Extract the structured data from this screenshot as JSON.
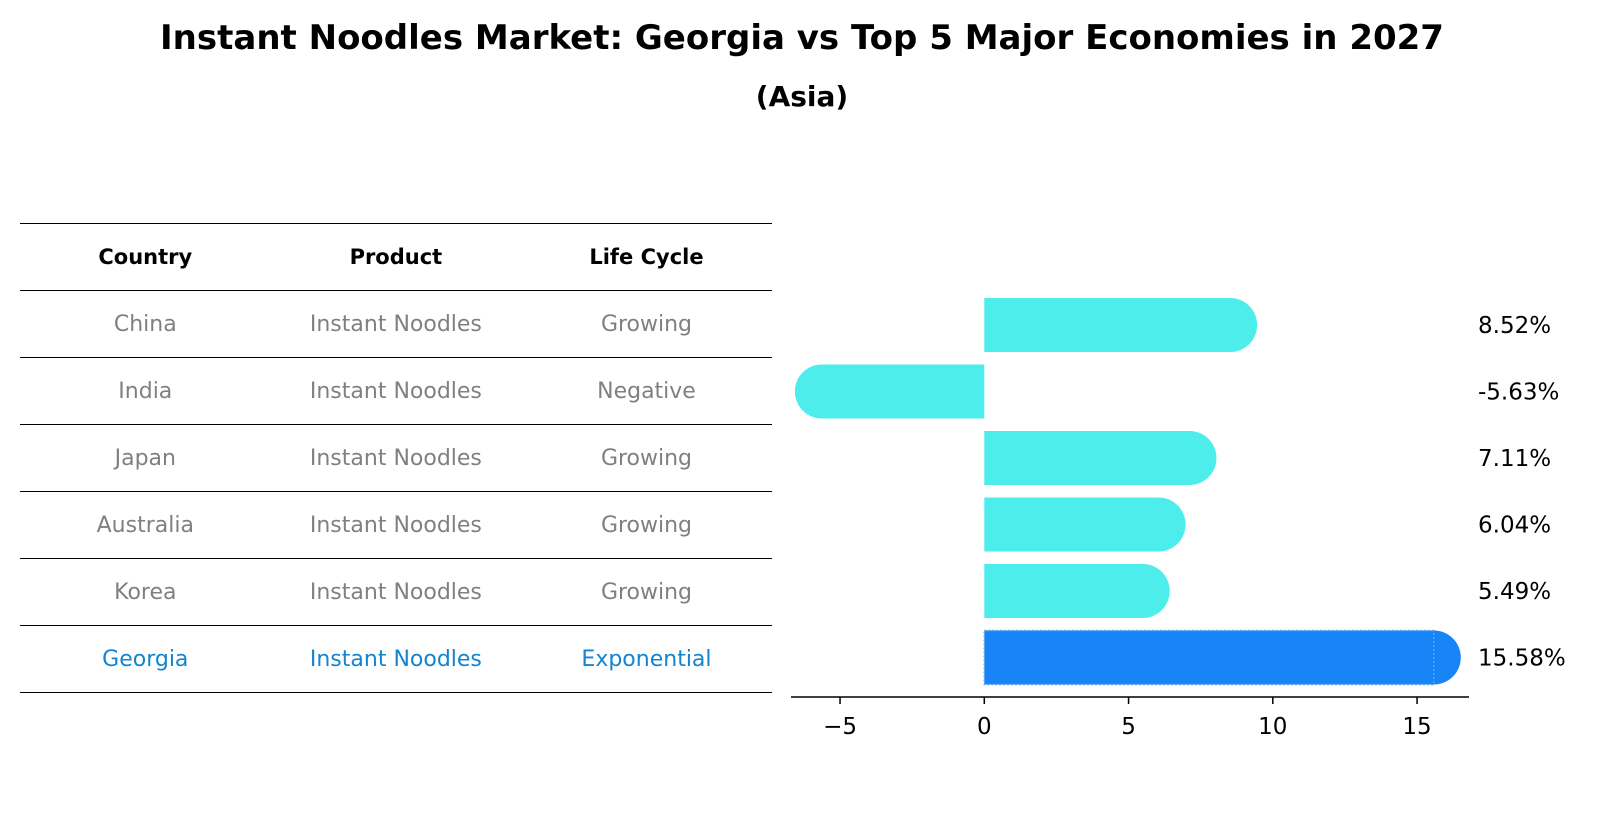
{
  "title": "Instant Noodles Market: Georgia vs Top 5 Major Economies in 2027",
  "subtitle": "(Asia)",
  "table": {
    "headers": [
      "Country",
      "Product",
      "Life Cycle"
    ],
    "rows": [
      {
        "country": "China",
        "product": "Instant Noodles",
        "life_cycle": "Growing"
      },
      {
        "country": "India",
        "product": "Instant Noodles",
        "life_cycle": "Negative"
      },
      {
        "country": "Japan",
        "product": "Instant Noodles",
        "life_cycle": "Growing"
      },
      {
        "country": "Australia",
        "product": "Instant Noodles",
        "life_cycle": "Growing"
      },
      {
        "country": "Korea",
        "product": "Instant Noodles",
        "life_cycle": "Growing"
      },
      {
        "country": "Georgia",
        "product": "Instant Noodles",
        "life_cycle": "Exponential"
      }
    ],
    "highlight_row": "Georgia",
    "colors": {
      "default_text": "#808080",
      "highlight_text": "#1385d0"
    }
  },
  "chart_data": {
    "type": "bar",
    "orientation": "horizontal",
    "categories": [
      "China",
      "India",
      "Japan",
      "Australia",
      "Korea",
      "Georgia"
    ],
    "values": [
      8.52,
      -5.63,
      7.11,
      6.04,
      5.49,
      15.58
    ],
    "value_labels": [
      "8.52%",
      "-5.63%",
      "7.11%",
      "6.04%",
      "5.49%",
      "15.58%"
    ],
    "xlim": [
      -6.7,
      16.8
    ],
    "xticks": [
      -5,
      0,
      5,
      10,
      15
    ],
    "xtick_labels": [
      "−5",
      "0",
      "5",
      "10",
      "15"
    ],
    "grid": false,
    "colors": {
      "default": "#4dedec",
      "highlight": "#1784f7"
    },
    "highlight_category": "Georgia"
  }
}
